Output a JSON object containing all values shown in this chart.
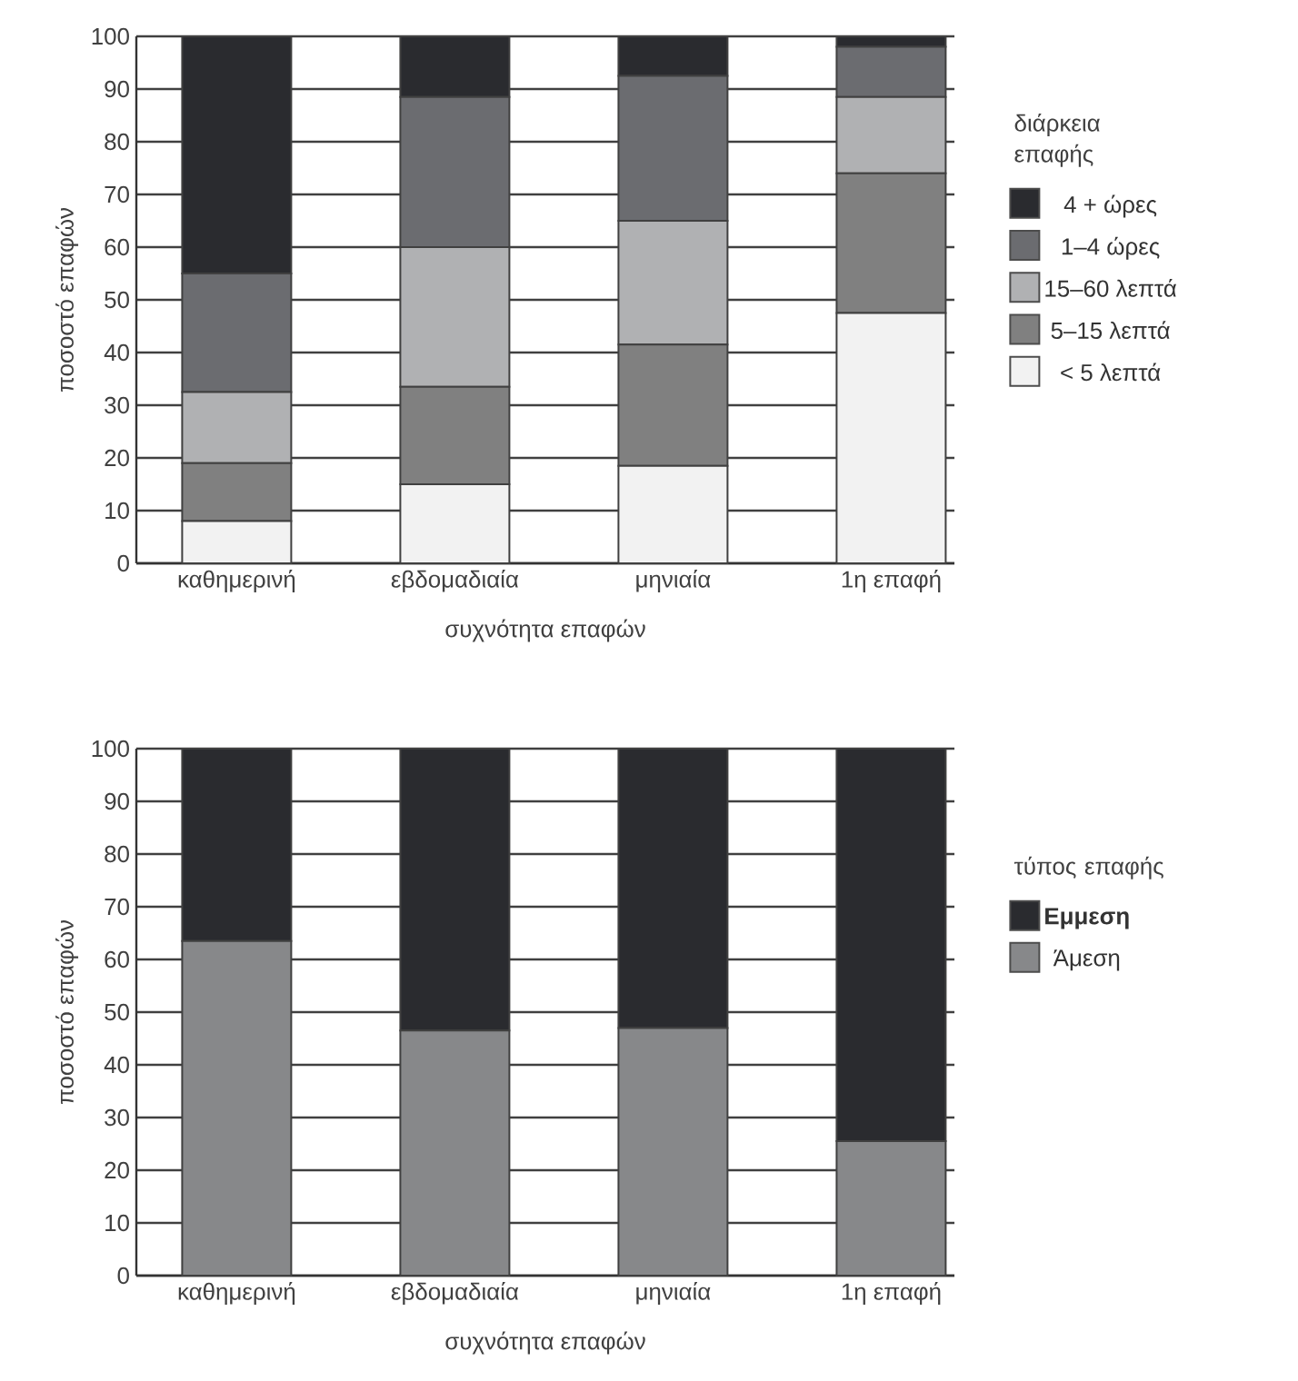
{
  "chart_data": [
    {
      "type": "bar",
      "stacked": true,
      "xlabel": "συχνότητα επαφών",
      "ylabel": "ποσοστό επαφών",
      "legend_title": "διάρκεια επαφής",
      "legend": "right",
      "grid": "y",
      "categories": [
        "καθημερινή",
        "εβδομαδιαία",
        "μηνιαία",
        "1η επαφή"
      ],
      "ylim": [
        0,
        100
      ],
      "yticks": [
        0,
        10,
        20,
        30,
        40,
        50,
        60,
        70,
        80,
        90,
        100
      ],
      "series": [
        {
          "name": "< 5 λεπτά",
          "color": "#f2f2f2",
          "values": [
            8,
            15,
            18.5,
            47.5
          ]
        },
        {
          "name": "5–15 λεπτά",
          "color": "#808080",
          "values": [
            11,
            18.5,
            23,
            26.5
          ]
        },
        {
          "name": "15–60 λεπτά",
          "color": "#b0b1b3",
          "values": [
            13.5,
            26.5,
            23.5,
            14.5
          ]
        },
        {
          "name": "1–4 ώρες",
          "color": "#6b6c70",
          "values": [
            22.5,
            28.5,
            27.5,
            9.5
          ]
        },
        {
          "name": "4 + ώρες",
          "color": "#2a2b2f",
          "values": [
            45,
            11.5,
            7.5,
            2
          ]
        }
      ]
    },
    {
      "type": "bar",
      "stacked": true,
      "xlabel": "συχνότητα επαφών",
      "ylabel": "ποσοστό επαφών",
      "legend_title": "τύπος επαφής",
      "legend": "right",
      "grid": "y",
      "categories": [
        "καθημερινή",
        "εβδομαδιαία",
        "μηνιαία",
        "1η επαφή"
      ],
      "ylim": [
        0,
        100
      ],
      "yticks": [
        0,
        10,
        20,
        30,
        40,
        50,
        60,
        70,
        80,
        90,
        100
      ],
      "series": [
        {
          "name": "Άμεση",
          "color": "#87888a",
          "values": [
            63.5,
            46.5,
            47,
            25.5
          ]
        },
        {
          "name": "**Εμμεση**",
          "color": "#2a2b2f",
          "values": [
            36.5,
            53.5,
            53,
            74.5
          ]
        }
      ]
    }
  ]
}
